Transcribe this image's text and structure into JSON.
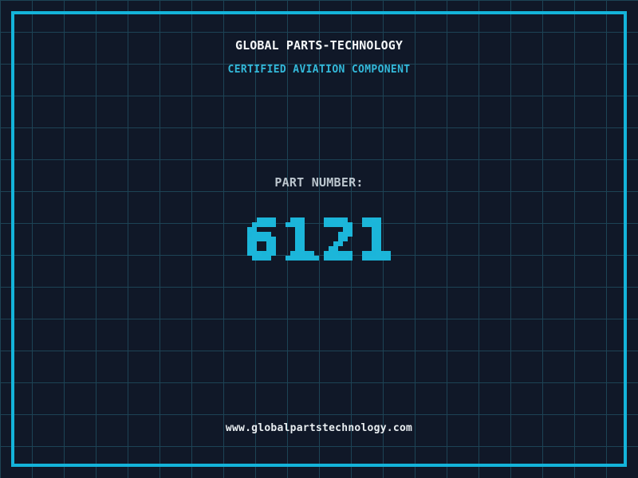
{
  "header": {
    "title": "GLOBAL PARTS-TECHNOLOGY",
    "subtitle": "CERTIFIED AVIATION COMPONENT"
  },
  "part": {
    "label": "PART NUMBER:",
    "number": "6121"
  },
  "footer": {
    "website": "www.globalpartstechnology.com"
  },
  "colors": {
    "background": "#101828",
    "grid_line": "#1d4355",
    "frame": "#14b4da",
    "number_accent": "#1cb6da",
    "subtitle_accent": "#33b9da",
    "title_text": "#f4f7f9",
    "label_text": "#bcc6ce",
    "footer_text": "#e9eef1"
  }
}
